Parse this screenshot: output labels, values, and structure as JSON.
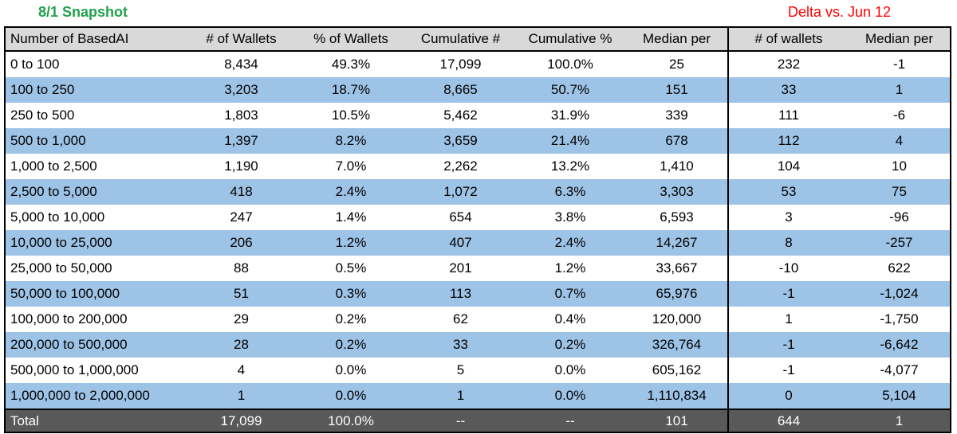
{
  "titles": {
    "snapshot": "8/1 Snapshot",
    "delta": "Delta vs. Jun 12"
  },
  "colors": {
    "green": "#21A14D",
    "red": "#FF0000",
    "header-bg": "#D9D9D9",
    "stripe": "#9DC3E6",
    "total-bg": "#595959",
    "border": "#000000"
  },
  "chart_data": {
    "type": "table",
    "title": "8/1 Snapshot",
    "annotation": "Delta vs. Jun 12",
    "columns": [
      "Number of BasedAI",
      "# of Wallets",
      "% of Wallets",
      "Cumulative #",
      "Cumulative %",
      "Median per",
      "# of wallets",
      "Median per"
    ],
    "delta_section_start_col": 6,
    "rows": [
      [
        "0 to 100",
        "8,434",
        "49.3%",
        "17,099",
        "100.0%",
        "25",
        "232",
        "-1"
      ],
      [
        "100 to 250",
        "3,203",
        "18.7%",
        "8,665",
        "50.7%",
        "151",
        "33",
        "1"
      ],
      [
        "250 to 500",
        "1,803",
        "10.5%",
        "5,462",
        "31.9%",
        "339",
        "111",
        "-6"
      ],
      [
        "500 to 1,000",
        "1,397",
        "8.2%",
        "3,659",
        "21.4%",
        "678",
        "112",
        "4"
      ],
      [
        "1,000 to 2,500",
        "1,190",
        "7.0%",
        "2,262",
        "13.2%",
        "1,410",
        "104",
        "10"
      ],
      [
        "2,500 to 5,000",
        "418",
        "2.4%",
        "1,072",
        "6.3%",
        "3,303",
        "53",
        "75"
      ],
      [
        "5,000 to 10,000",
        "247",
        "1.4%",
        "654",
        "3.8%",
        "6,593",
        "3",
        "-96"
      ],
      [
        "10,000 to 25,000",
        "206",
        "1.2%",
        "407",
        "2.4%",
        "14,267",
        "8",
        "-257"
      ],
      [
        "25,000 to 50,000",
        "88",
        "0.5%",
        "201",
        "1.2%",
        "33,667",
        "-10",
        "622"
      ],
      [
        "50,000 to 100,000",
        "51",
        "0.3%",
        "113",
        "0.7%",
        "65,976",
        "-1",
        "-1,024"
      ],
      [
        "100,000 to 200,000",
        "29",
        "0.2%",
        "62",
        "0.4%",
        "120,000",
        "1",
        "-1,750"
      ],
      [
        "200,000 to 500,000",
        "28",
        "0.2%",
        "33",
        "0.2%",
        "326,764",
        "-1",
        "-6,642"
      ],
      [
        "500,000 to 1,000,000",
        "4",
        "0.0%",
        "5",
        "0.0%",
        "605,162",
        "-1",
        "-4,077"
      ],
      [
        "1,000,000 to 2,000,000",
        "1",
        "0.0%",
        "1",
        "0.0%",
        "1,110,834",
        "0",
        "5,104"
      ]
    ],
    "total_row": [
      "Total",
      "17,099",
      "100.0%",
      "--",
      "--",
      "101",
      "644",
      "1"
    ],
    "layout": {
      "striped": true,
      "first_data_row_background": "white",
      "grid": false,
      "header_alignment": "center-except-first",
      "value_alignment": "center-except-first"
    }
  }
}
